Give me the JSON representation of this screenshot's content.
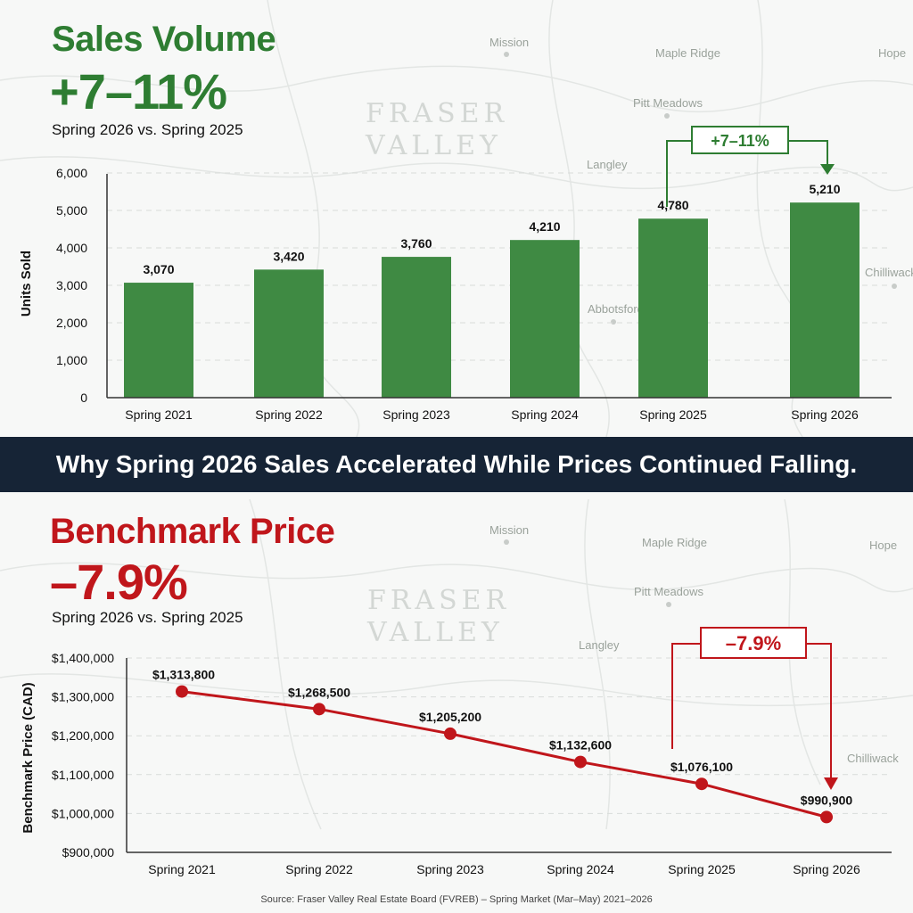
{
  "map": {
    "watermark_line1": "FRASER",
    "watermark_line2": "VALLEY",
    "places": [
      "Mission",
      "Maple Ridge",
      "Hope",
      "Pitt Meadows",
      "Langley",
      "Abbotsford",
      "Chilliwack"
    ]
  },
  "sales": {
    "title": "Sales Volume",
    "change": "+7–11%",
    "subtitle": "Spring 2026 vs. Spring 2025",
    "annotation": "+7–11%"
  },
  "banner": "Why Spring 2026 Sales Accelerated While Prices Continued Falling.",
  "price": {
    "title": "Benchmark Price",
    "change": "–7.9%",
    "subtitle": "Spring 2026 vs. Spring 2025",
    "annotation": "–7.9%"
  },
  "source": "Source: Fraser Valley Real Estate Board (FVREB) – Spring Market (Mar–May) 2021–2026",
  "colors": {
    "green": "#2e7d32",
    "bar": "#3f8a43",
    "red": "#c0161b",
    "banner": "#162436"
  },
  "chart_data": [
    {
      "type": "bar",
      "categories": [
        "Spring 2021",
        "Spring 2022",
        "Spring 2023",
        "Spring 2024",
        "Spring 2025",
        "Spring 2026"
      ],
      "values": [
        3070,
        3420,
        3760,
        4210,
        4780,
        5210
      ],
      "value_labels": [
        "3,070",
        "3,420",
        "3,760",
        "4,210",
        "4,780",
        "5,210"
      ],
      "ylabel": "Units Sold",
      "yticks": [
        "0",
        "1,000",
        "2,000",
        "3,000",
        "4,000",
        "5,000",
        "6,000"
      ],
      "ylim": [
        0,
        6000
      ],
      "grid": true
    },
    {
      "type": "line",
      "categories": [
        "Spring 2021",
        "Spring 2022",
        "Spring 2023",
        "Spring 2024",
        "Spring 2025",
        "Spring 2026"
      ],
      "values": [
        1313800,
        1268500,
        1205200,
        1132600,
        1076100,
        990900
      ],
      "value_labels": [
        "$1,313,800",
        "$1,268,500",
        "$1,205,200",
        "$1,132,600",
        "$1,076,100",
        "$990,900"
      ],
      "ylabel": "Benchmark Price (CAD)",
      "yticks": [
        "$900,000",
        "$1,000,000",
        "$1,100,000",
        "$1,200,000",
        "$1,300,000",
        "$1,400,000"
      ],
      "ylim": [
        900000,
        1400000
      ],
      "grid": true
    }
  ]
}
